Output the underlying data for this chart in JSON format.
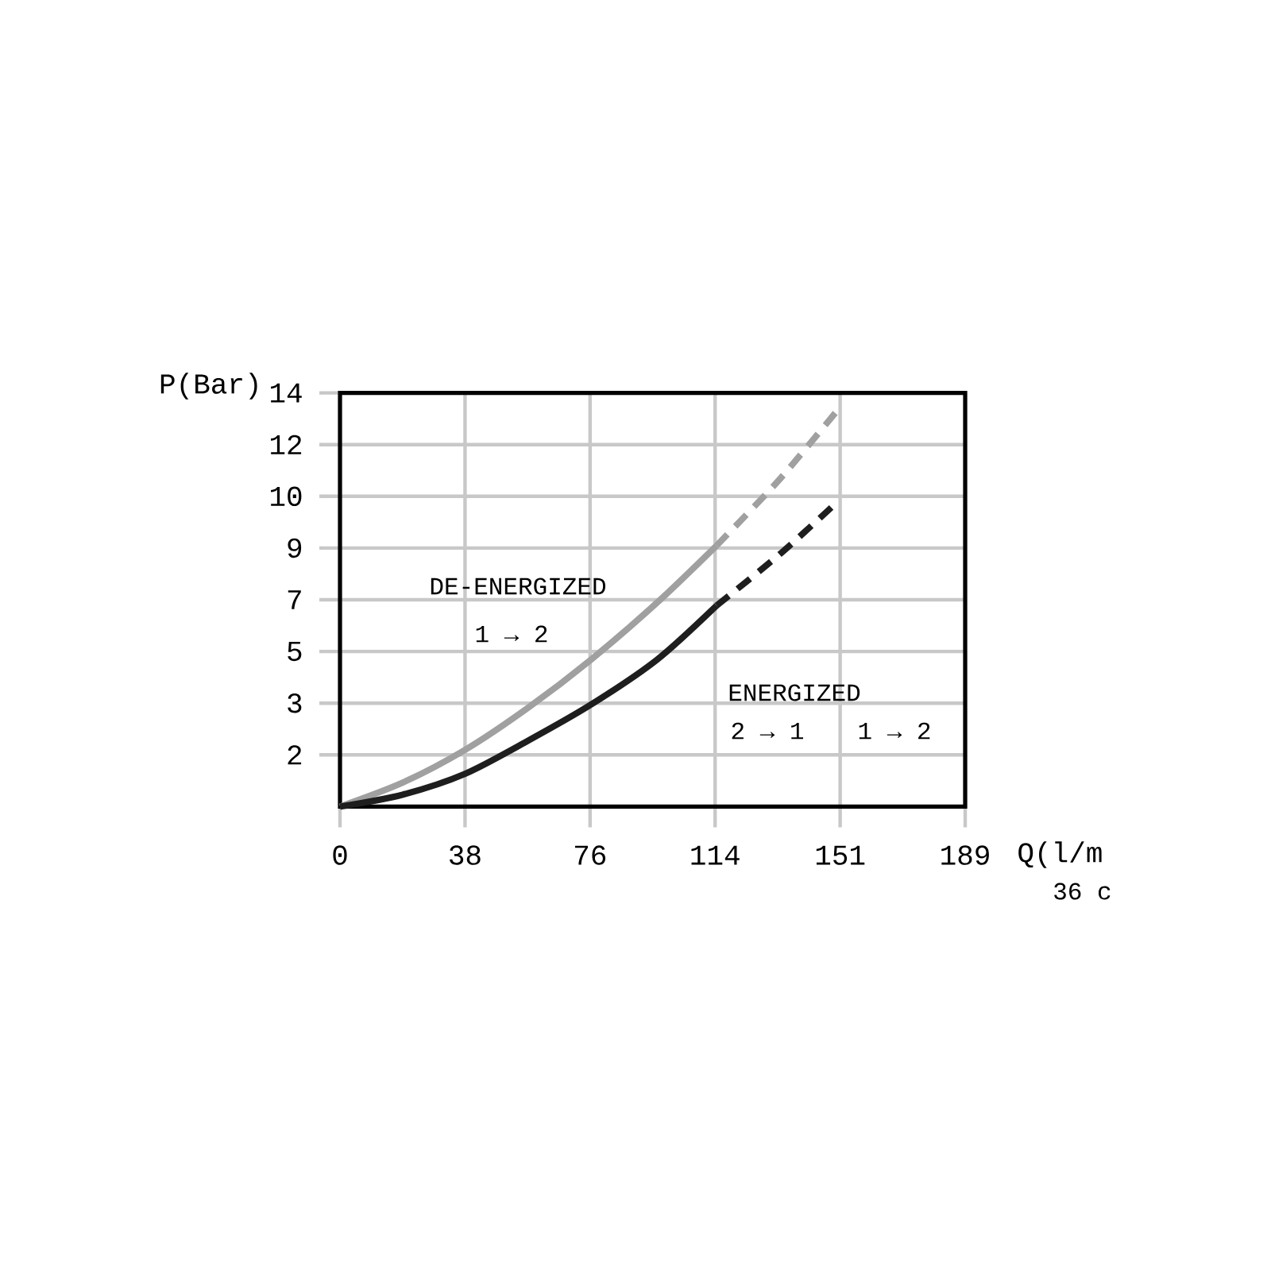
{
  "chart_data": {
    "type": "line",
    "xlabel": "Q(l/m",
    "ylabel": "P(Bar)",
    "xlim": [
      0,
      189.25
    ],
    "ylim": [
      0,
      13.79
    ],
    "xticks": [
      0,
      {
        "value": 37.85,
        "label": "38"
      },
      {
        "value": 75.7,
        "label": "76"
      },
      {
        "value": 113.55,
        "label": "114"
      },
      {
        "value": 151.4,
        "label": "151"
      },
      {
        "value": 189.25,
        "label": "189"
      }
    ],
    "yticks": [
      {
        "value": 1.724,
        "label": "2"
      },
      {
        "value": 3.447,
        "label": "3"
      },
      {
        "value": 5.171,
        "label": "5"
      },
      {
        "value": 6.895,
        "label": "7"
      },
      {
        "value": 8.618,
        "label": "9"
      },
      {
        "value": 10.342,
        "label": "10"
      },
      {
        "value": 12.066,
        "label": "12"
      },
      {
        "value": 13.79,
        "label": "14"
      }
    ],
    "grid": true,
    "marker": "none",
    "series": [
      {
        "color": "#a0a0a0",
        "line_style": "solid",
        "x": [
          0,
          19,
          38,
          57,
          76,
          96,
          114
        ],
        "values": [
          0,
          0.8,
          1.9,
          3.3,
          4.9,
          6.8,
          8.7
        ]
      },
      {
        "color": "#a0a0a0",
        "line_style": "dashed",
        "x": [
          114,
          133,
          152
        ],
        "values": [
          8.7,
          10.9,
          13.4
        ]
      },
      {
        "color": "#1e1e1e",
        "line_style": "solid",
        "x": [
          0,
          19,
          38,
          57,
          76,
          96,
          114
        ],
        "values": [
          0,
          0.4,
          1.1,
          2.2,
          3.4,
          4.9,
          6.7
        ]
      },
      {
        "color": "#1e1e1e",
        "line_style": "dashed",
        "x": [
          114,
          133,
          150
        ],
        "values": [
          6.7,
          8.4,
          10.1
        ]
      }
    ],
    "annotations": [
      "DE-ENERGIZED",
      "1 → 2",
      "ENERGIZED",
      "2 → 1",
      "1 → 2",
      "36 c"
    ]
  }
}
